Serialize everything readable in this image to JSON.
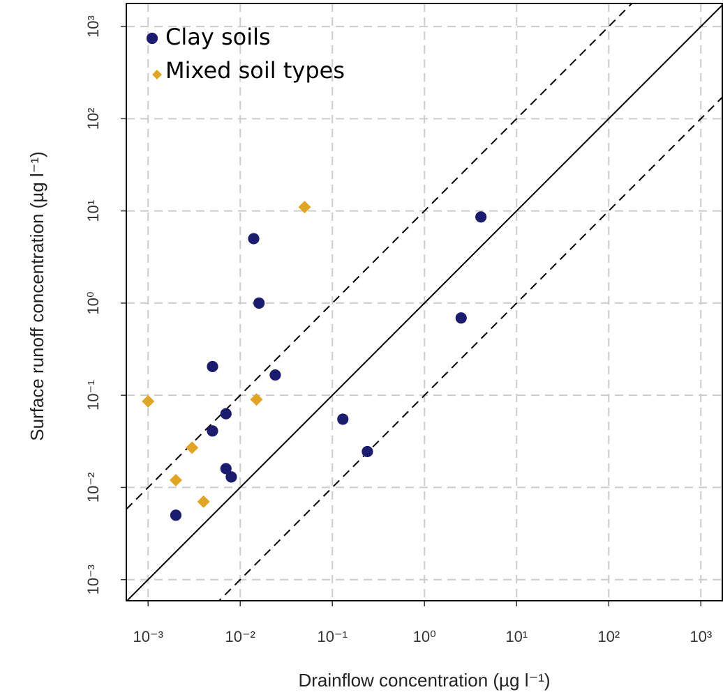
{
  "chart_data": {
    "type": "scatter",
    "x_label": "Drainflow concentration (µg l⁻¹)",
    "y_label": "Surface runoff concentration (µg l⁻¹)",
    "xscale": "log",
    "yscale": "log",
    "xlim": [
      0.00058,
      1710
    ],
    "ylim": [
      0.00059,
      1780
    ],
    "xticks": [
      {
        "value": 0.001,
        "label": "10⁻³"
      },
      {
        "value": 0.01,
        "label": "10⁻²"
      },
      {
        "value": 0.1,
        "label": "10⁻¹"
      },
      {
        "value": 1,
        "label": "10⁰"
      },
      {
        "value": 10,
        "label": "10¹"
      },
      {
        "value": 100,
        "label": "10²"
      },
      {
        "value": 1000,
        "label": "10³"
      }
    ],
    "yticks": [
      {
        "value": 0.001,
        "label": "10⁻³"
      },
      {
        "value": 0.01,
        "label": "10⁻²"
      },
      {
        "value": 0.1,
        "label": "10⁻¹"
      },
      {
        "value": 1,
        "label": "10⁰"
      },
      {
        "value": 10,
        "label": "10¹"
      },
      {
        "value": 100,
        "label": "10²"
      },
      {
        "value": 1000,
        "label": "10³"
      }
    ],
    "grid": true,
    "legend": "upper left",
    "reference_lines": [
      {
        "factor": 10,
        "style": "dashed"
      },
      {
        "factor": 1,
        "style": "solid"
      },
      {
        "factor": 0.1,
        "style": "dashed"
      }
    ],
    "series": [
      {
        "name": "Clay soils",
        "color": "#1c1c6e",
        "marker": "circle",
        "x": [
          0.002,
          0.005,
          0.005,
          0.007,
          0.007,
          0.008,
          0.014,
          0.016,
          0.024,
          0.13,
          0.24,
          2.5,
          4.1
        ],
        "values": [
          0.005,
          0.041,
          0.205,
          0.063,
          0.016,
          0.013,
          5,
          1.0,
          0.166,
          0.055,
          0.0245,
          0.69,
          8.6
        ]
      },
      {
        "name": "Mixed soil types",
        "color": "#e0a526",
        "marker": "diamond",
        "x": [
          0.001,
          0.002,
          0.003,
          0.004,
          0.015,
          0.05
        ],
        "values": [
          0.086,
          0.012,
          0.027,
          0.007,
          0.09,
          11
        ]
      }
    ]
  }
}
